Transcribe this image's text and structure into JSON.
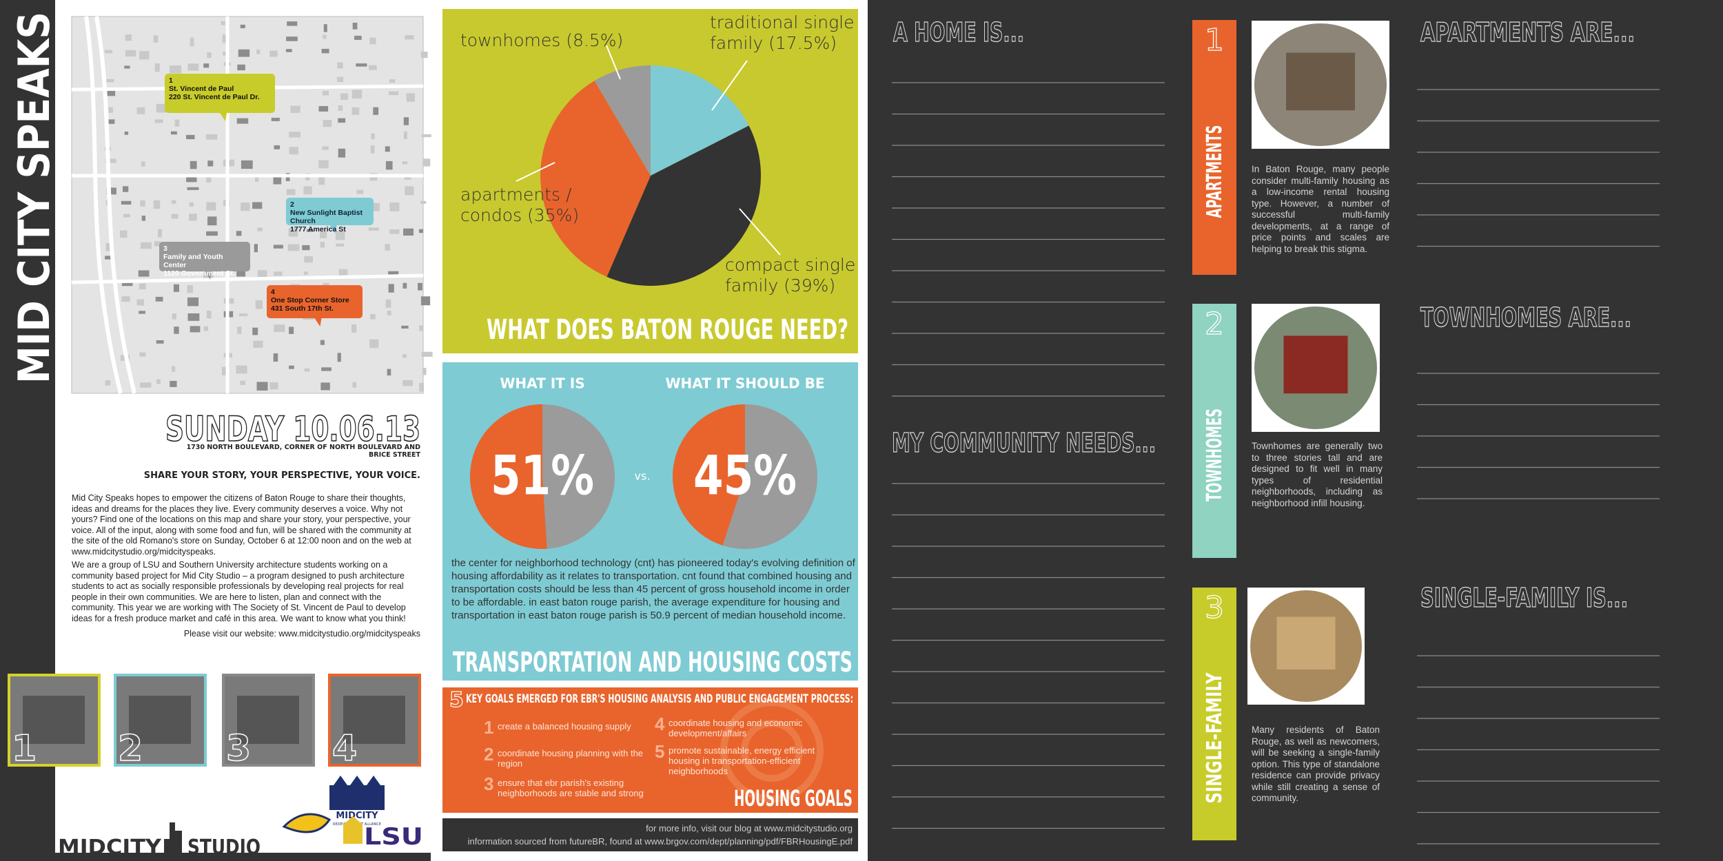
{
  "sidebar_title": "MID CITY SPEAKS",
  "map": {
    "locations": [
      {
        "number": "1",
        "name": "St. Vincent de Paul",
        "address": "220 St. Vincent de Paul Dr."
      },
      {
        "number": "2",
        "name": "New Sunlight Baptist Church",
        "address": "1777 America St"
      },
      {
        "number": "3",
        "name": "Family and Youth Center",
        "address": "1120 Government St."
      },
      {
        "number": "4",
        "name": "One Stop Corner Store",
        "address": "431 South 17th St."
      }
    ]
  },
  "event": {
    "date": "SUNDAY 10.06.13",
    "address": "1730 NORTH BOULEVARD, CORNER OF NORTH BOULEVARD AND BRICE STREET",
    "tagline": "SHARE YOUR STORY, YOUR PERSPECTIVE, YOUR VOICE.",
    "paragraphs": [
      "Mid City Speaks hopes to empower the citizens of Baton Rouge to share their thoughts, ideas and dreams for the places they live.  Every community deserves a voice.  Why not yours? Find one of the locations on this map and share your story, your perspective, your voice.  All of the input, along with some food and fun, will be shared with the community at the site of the old Romano's store on Sunday, October 6 at 12:00 noon and on the web at www.midcitystudio.org/midcityspeaks.",
      "We are a group of LSU and Southern University architecture students working on a community based project for Mid City Studio – a program designed to push architecture students to act as socially responsible professionals by developing real projects for real people in their own communities.  We are here to listen, plan and connect with the community.  This year we are working with The Society of St. Vincent de Paul to develop ideas for a fresh produce market and café in this area.  We want to know what you think!"
    ],
    "website": "Please visit our website: www.midcitystudio.org/midcityspeaks"
  },
  "photos": [
    "1",
    "2",
    "3",
    "4"
  ],
  "logos": {
    "alliance": "MIDCITY",
    "alliance_sub": "REDEVELOPMENT ALLIANCE",
    "lsu": "LSU",
    "studio_left": "MIDCITY",
    "studio_right": "STUDIO"
  },
  "housing_need": {
    "title": "WHAT DOES BATON ROUGE NEED?",
    "slices": [
      {
        "label": "traditional single family (17.5%)",
        "value": 17.5,
        "color": "#7ecbd3"
      },
      {
        "label": "compact single family (39%)",
        "value": 39,
        "color": "#333333"
      },
      {
        "label": "apartments / condos (35%)",
        "value": 35,
        "color": "#e8642c"
      },
      {
        "label": "townhomes (8.5%)",
        "value": 8.5,
        "color": "#9b9b9b"
      }
    ]
  },
  "affordability": {
    "items": [
      {
        "heading": "WHAT IT IS",
        "value": 51,
        "value_label": "51%"
      },
      {
        "heading": "WHAT IT  SHOULD BE",
        "value": 45,
        "value_label": "45%"
      }
    ],
    "versus": "vs.",
    "body": "the center for neighborhood technology (cnt) has pioneered today's evolving definition of housing affordability as it relates to transportation. cnt found that combined housing and transportation costs should be less than 45 percent of gross household income in order to be affordable. in east baton rouge parish, the average expenditure for housing and transportation in east baton rouge parish is 50.9 percent of median household income.",
    "title": "TRANSPORTATION AND HOUSING COSTS"
  },
  "goals": {
    "number": "5",
    "heading": "KEY GOALS EMERGED FOR EBR'S HOUSING ANALYSIS AND PUBLIC ENGAGEMENT PROCESS:",
    "items": [
      {
        "number": "1",
        "text": "create a balanced housing supply"
      },
      {
        "number": "2",
        "text": "coordinate housing planning with the region"
      },
      {
        "number": "3",
        "text": "ensure that ebr parish's existing neighborhoods are stable and strong"
      },
      {
        "number": "4",
        "text": "coordinate housing and economic development/affairs"
      },
      {
        "number": "5",
        "text": "promote sustainable, energy efficient housing in transportation-efficient neighborhoods"
      }
    ],
    "title": "HOUSING GOALS"
  },
  "footer": [
    "for more info, visit our blog at www.midcitystudio.org",
    "information sourced from futureBR, found at www.brgov.com/dept/planning/pdf/FBRHousingE.pdf"
  ],
  "prompts": {
    "home": "A HOME IS...",
    "community": "MY COMMUNITY NEEDS..."
  },
  "types": [
    {
      "number": "1",
      "name": "APARTMENTS",
      "description": "In Baton Rouge, many people consider multi-family housing as a low-income rental housing type. However, a number of successful multi-family developments, at a range of price points and scales are helping to break this stigma.",
      "prompt": "APARTMENTS ARE..."
    },
    {
      "number": "2",
      "name": "TOWNHOMES",
      "description": "Townhomes are generally two to three stories tall and are designed to fit well in many types of residential neighborhoods, including as neighborhood infill housing.",
      "prompt": "TOWNHOMES ARE..."
    },
    {
      "number": "3",
      "name": "SINGLE-FAMILY",
      "description": "Many residents of Baton Rouge, as well as newcomers, will be seeking a single-family option. This type of standalone residence can provide privacy while still creating a sense of community.",
      "prompt": "SINGLE-FAMILY IS..."
    }
  ]
}
